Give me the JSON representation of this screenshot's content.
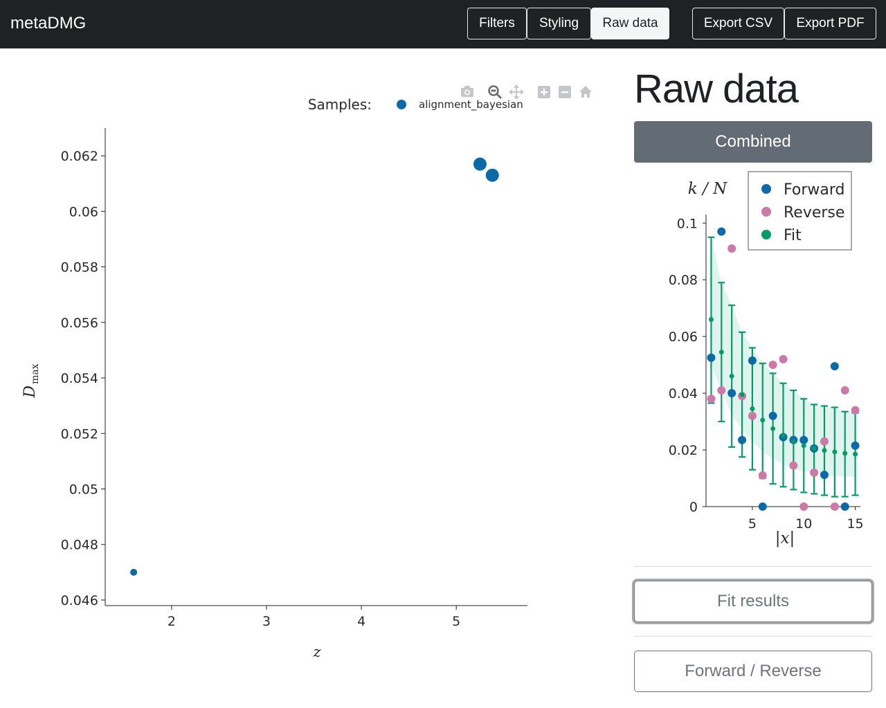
{
  "app": {
    "brand": "metaDMG"
  },
  "nav": {
    "filters": "Filters",
    "styling": "Styling",
    "raw_data": "Raw data",
    "export_csv": "Export CSV",
    "export_pdf": "Export PDF"
  },
  "modebar": {
    "icons": [
      "camera-icon",
      "zoom-icon",
      "pan-icon",
      "zoom-in-icon",
      "zoom-out-icon",
      "home-icon"
    ]
  },
  "sidebar": {
    "title": "Raw data",
    "combined_button": "Combined",
    "fit_results_button": "Fit results",
    "forward_reverse_button": "Forward / Reverse"
  },
  "colors": {
    "forward": "#0c6aa8",
    "reverse": "#cc79a7",
    "fit": "#059a6a",
    "navbar": "#1f2124"
  },
  "chart_data": [
    {
      "type": "scatter",
      "legend_title": "Samples:",
      "legend_position": "top",
      "series": [
        {
          "name": "alignment_bayesian",
          "points": [
            {
              "x": 1.6,
              "y": 0.047,
              "size": "small"
            },
            {
              "x": 5.25,
              "y": 0.0617,
              "size": "large"
            },
            {
              "x": 5.38,
              "y": 0.0613,
              "size": "large"
            }
          ]
        }
      ],
      "xlabel": "z",
      "ylabel": "D",
      "ylabel_sub": "max",
      "xticks": [
        2,
        3,
        4,
        5
      ],
      "yticks": [
        "0.046",
        "0.048",
        "0.05",
        "0.052",
        "0.054",
        "0.056",
        "0.058",
        "0.06",
        "0.062"
      ],
      "xlim": [
        1.3,
        5.75
      ],
      "ylim": [
        0.0458,
        0.063
      ],
      "grid": false
    },
    {
      "type": "scatter",
      "ylabel": "k / N",
      "xlabel": "|x|",
      "xticks": [
        5,
        10,
        15
      ],
      "yticks": [
        "0",
        "0.02",
        "0.04",
        "0.06",
        "0.08",
        "0.1"
      ],
      "xlim": [
        0.5,
        15.5
      ],
      "ylim": [
        0,
        0.103
      ],
      "legend_position": "top-right",
      "series": [
        {
          "name": "Forward",
          "x": [
            1,
            2,
            3,
            4,
            5,
            6,
            7,
            8,
            9,
            10,
            11,
            12,
            13,
            14,
            15
          ],
          "y": [
            0.0525,
            0.097,
            0.04,
            0.0235,
            0.0515,
            0.0,
            0.032,
            0.0245,
            0.0235,
            0.0235,
            0.0205,
            0.0112,
            0.0495,
            0.0,
            0.0215
          ]
        },
        {
          "name": "Reverse",
          "x": [
            1,
            2,
            3,
            4,
            5,
            6,
            7,
            8,
            9,
            10,
            11,
            12,
            13,
            14,
            15
          ],
          "y": [
            0.038,
            0.041,
            0.091,
            0.039,
            0.032,
            0.011,
            0.05,
            0.052,
            0.0145,
            0.0,
            0.012,
            0.023,
            0.0,
            0.041,
            0.034
          ]
        },
        {
          "name": "Fit",
          "x": [
            1,
            2,
            3,
            4,
            5,
            6,
            7,
            8,
            9,
            10,
            11,
            12,
            13,
            14,
            15
          ],
          "y": [
            0.066,
            0.0545,
            0.046,
            0.0395,
            0.0345,
            0.0305,
            0.0275,
            0.025,
            0.023,
            0.0215,
            0.0205,
            0.0198,
            0.0193,
            0.0188,
            0.0185
          ],
          "lower": [
            0.0365,
            0.03,
            0.021,
            0.0175,
            0.013,
            0.01,
            0.008,
            0.007,
            0.006,
            0.005,
            0.0045,
            0.004,
            0.0035,
            0.0035,
            0.004
          ],
          "upper": [
            0.095,
            0.079,
            0.071,
            0.0615,
            0.056,
            0.0505,
            0.047,
            0.0435,
            0.041,
            0.038,
            0.036,
            0.0355,
            0.035,
            0.0335,
            0.033
          ]
        }
      ]
    }
  ]
}
